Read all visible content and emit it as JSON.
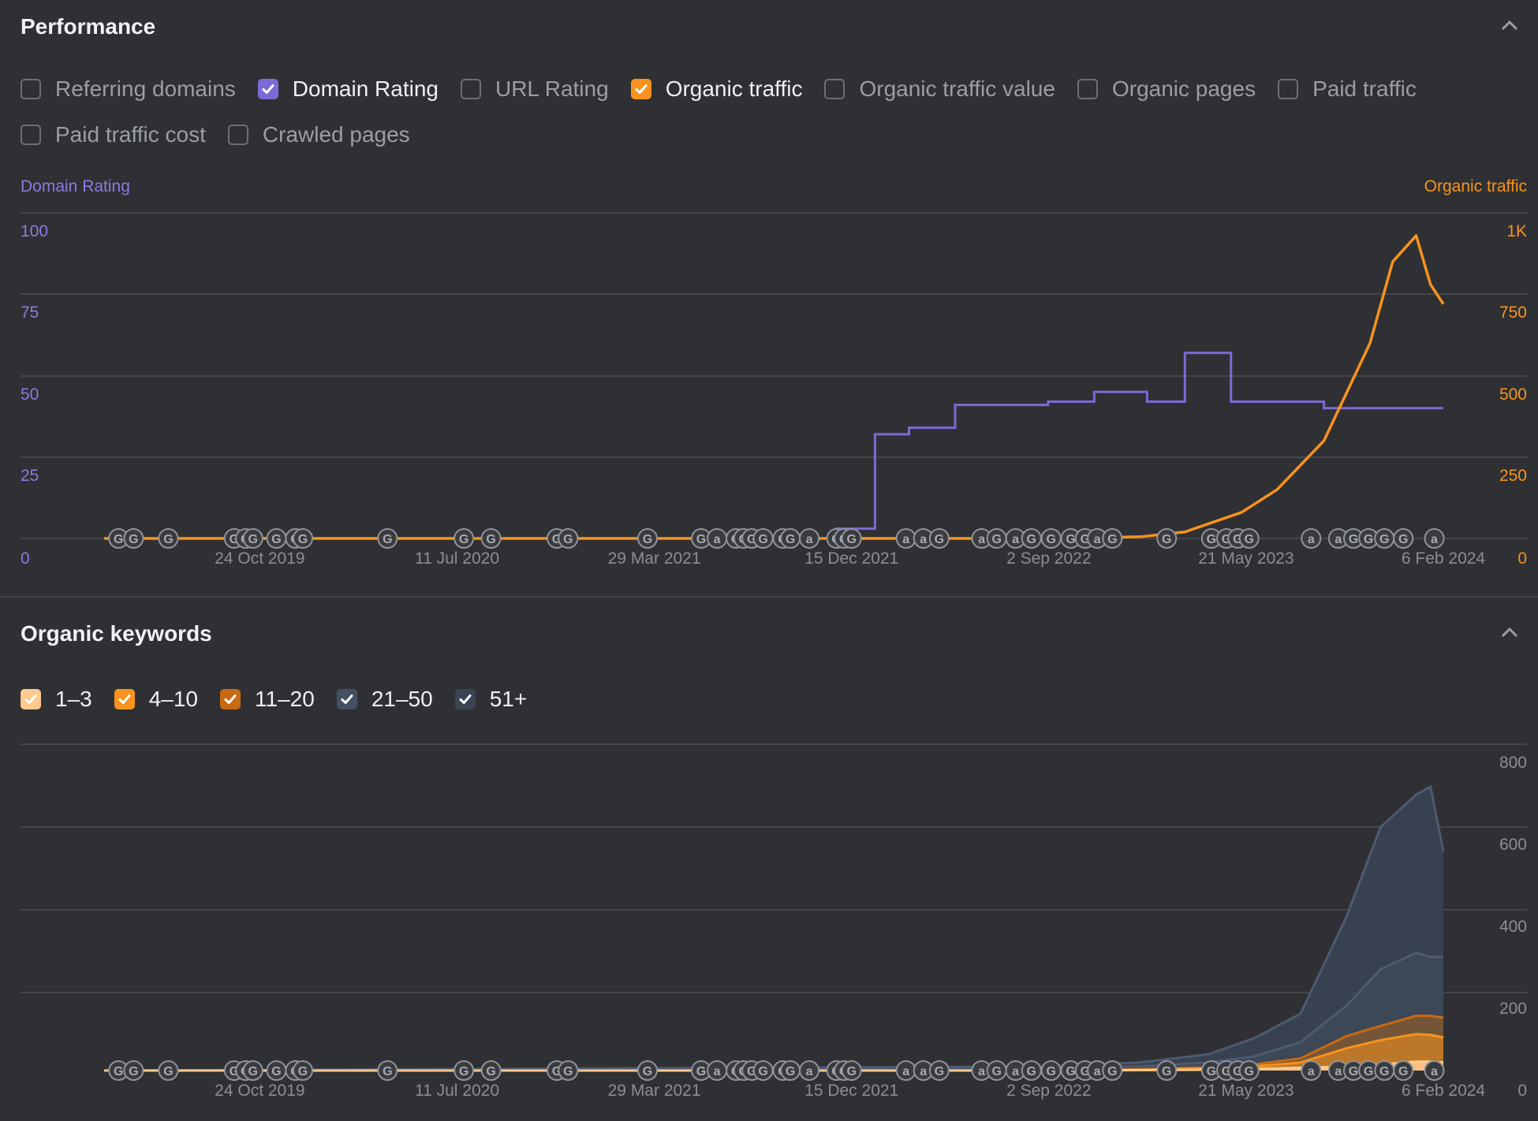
{
  "performance": {
    "title": "Performance",
    "metrics": [
      {
        "label": "Referring domains",
        "checked": false,
        "color": "#6b6f76"
      },
      {
        "label": "Domain Rating",
        "checked": true,
        "color": "#7b6ad6"
      },
      {
        "label": "URL Rating",
        "checked": false,
        "color": "#6b6f76"
      },
      {
        "label": "Organic traffic",
        "checked": true,
        "color": "#f7931e"
      },
      {
        "label": "Organic traffic value",
        "checked": false,
        "color": "#6b6f76"
      },
      {
        "label": "Organic pages",
        "checked": false,
        "color": "#6b6f76"
      },
      {
        "label": "Paid traffic",
        "checked": false,
        "color": "#6b6f76"
      },
      {
        "label": "Paid traffic cost",
        "checked": false,
        "color": "#6b6f76"
      },
      {
        "label": "Crawled pages",
        "checked": false,
        "color": "#6b6f76"
      }
    ],
    "left_axis_title": "Domain Rating",
    "right_axis_title": "Organic traffic",
    "left_ticks": [
      "100",
      "75",
      "50",
      "25",
      "0"
    ],
    "right_ticks": [
      "1K",
      "750",
      "500",
      "250",
      "0"
    ],
    "x_ticks": [
      "24 Oct 2019",
      "11 Jul 2020",
      "29 Mar 2021",
      "15 Dec 2021",
      "2 Sep 2022",
      "21 May 2023",
      "6 Feb 2024"
    ],
    "colors": {
      "dr": "#7b6ad6",
      "traffic": "#f7931e"
    }
  },
  "keywords": {
    "title": "Organic keywords",
    "groups": [
      {
        "label": "1–3",
        "checked": true,
        "color": "#ffc98f"
      },
      {
        "label": "4–10",
        "checked": true,
        "color": "#f7931e"
      },
      {
        "label": "11–20",
        "checked": true,
        "color": "#c86a12"
      },
      {
        "label": "21–50",
        "checked": true,
        "color": "#435064"
      },
      {
        "label": "51+",
        "checked": true,
        "color": "#3a4455"
      }
    ],
    "right_ticks": [
      "800",
      "600",
      "400",
      "200",
      "0"
    ],
    "x_ticks": [
      "24 Oct 2019",
      "11 Jul 2020",
      "29 Mar 2021",
      "15 Dec 2021",
      "2 Sep 2022",
      "21 May 2023",
      "6 Feb 2024"
    ]
  },
  "chart_data": [
    {
      "type": "line",
      "title": "",
      "series": [
        {
          "name": "Domain Rating",
          "axis": "left",
          "x": [
            "2019-04-01",
            "2021-11-20",
            "2021-11-25",
            "2022-01-15",
            "2022-03-01",
            "2022-05-01",
            "2022-09-01",
            "2022-11-01",
            "2023-01-10",
            "2023-02-20",
            "2023-03-01",
            "2023-05-01",
            "2023-09-01",
            "2024-02-06"
          ],
          "y": [
            0,
            0,
            3,
            32,
            34,
            41,
            42,
            45,
            42,
            42,
            57,
            42,
            40,
            40
          ]
        },
        {
          "name": "Organic traffic",
          "axis": "right",
          "x": [
            "2019-04-01",
            "2022-09-01",
            "2023-01-01",
            "2023-03-01",
            "2023-05-15",
            "2023-07-01",
            "2023-09-01",
            "2023-11-01",
            "2023-12-01",
            "2024-01-01",
            "2024-01-20",
            "2024-02-06"
          ],
          "y": [
            0,
            0,
            5,
            20,
            80,
            150,
            300,
            600,
            850,
            930,
            780,
            720
          ]
        }
      ],
      "left_ylim": [
        0,
        100
      ],
      "right_ylim": [
        0,
        1000
      ],
      "xlim": [
        "2019-04-01",
        "2024-02-06"
      ],
      "legend": "none",
      "grid": true
    },
    {
      "type": "area",
      "title": "",
      "x": [
        "2019-04-01",
        "2022-09-01",
        "2023-01-01",
        "2023-04-01",
        "2023-06-01",
        "2023-08-01",
        "2023-10-01",
        "2023-11-15",
        "2024-01-01",
        "2024-01-20",
        "2024-02-06"
      ],
      "series": [
        {
          "name": "1–3",
          "values": [
            0,
            0,
            1,
            2,
            4,
            7,
            10,
            15,
            22,
            22,
            20
          ]
        },
        {
          "name": "4–10",
          "values": [
            0,
            0,
            2,
            5,
            10,
            20,
            55,
            75,
            90,
            88,
            82
          ]
        },
        {
          "name": "11–20",
          "values": [
            0,
            0,
            3,
            8,
            15,
            30,
            85,
            110,
            135,
            135,
            130
          ]
        },
        {
          "name": "21–50",
          "values": [
            0,
            5,
            10,
            20,
            35,
            70,
            160,
            250,
            290,
            280,
            280
          ]
        },
        {
          "name": "51+",
          "values": [
            0,
            10,
            20,
            40,
            80,
            140,
            380,
            600,
            680,
            700,
            540
          ]
        }
      ],
      "ylim": [
        0,
        800
      ],
      "xlim": [
        "2019-04-01",
        "2024-02-06"
      ],
      "legend": "none",
      "grid": true
    }
  ]
}
